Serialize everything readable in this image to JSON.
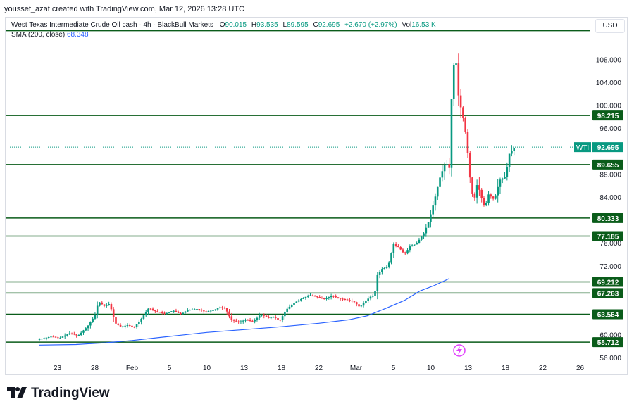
{
  "header": {
    "author": "youssef_azat created with TradingView.com, Mar 12, 2026 13:28 UTC"
  },
  "legend": {
    "title": "West Texas Intermediate Crude Oil cash · 4h · BlackBull Markets",
    "open_label": "O",
    "open": "90.015",
    "high_label": "H",
    "high": "93.535",
    "low_label": "L",
    "low": "89.595",
    "close_label": "C",
    "close": "92.695",
    "change": "+2.670 (+2.97%)",
    "vol_label": "Vol",
    "vol": "16.53 K",
    "sma_label": "SMA (200, close)",
    "sma_value": "68.348"
  },
  "currency": "USD",
  "symbol_badge": "WTI",
  "brand": "TradingView",
  "colors": {
    "up": "#089981",
    "down": "#f23645",
    "sma": "#2962ff",
    "level_line": "#0a5c1a",
    "badge": "#0a5c1a"
  },
  "icons": {
    "flash": "flash-icon",
    "logo": "tradingview-logo-icon"
  },
  "chart_data": {
    "type": "candlestick",
    "y_ticks": [
      "108.000",
      "104.000",
      "100.000",
      "96.000",
      "88.000",
      "84.000",
      "76.000",
      "72.000",
      "60.000",
      "56.000"
    ],
    "ylim": [
      55.5,
      113
    ],
    "x_ticks": [
      {
        "label": "23",
        "t": 0.5
      },
      {
        "label": "28",
        "t": 1.5
      },
      {
        "label": "Feb",
        "t": 2.5
      },
      {
        "label": "5",
        "t": 3.5
      },
      {
        "label": "10",
        "t": 4.5
      },
      {
        "label": "13",
        "t": 5.5
      },
      {
        "label": "18",
        "t": 6.5
      },
      {
        "label": "22",
        "t": 7.5
      },
      {
        "label": "Mar",
        "t": 8.5
      },
      {
        "label": "5",
        "t": 9.5
      },
      {
        "label": "10",
        "t": 10.5
      },
      {
        "label": "13",
        "t": 11.5
      },
      {
        "label": "18",
        "t": 12.5
      },
      {
        "label": "22",
        "t": 13.5
      },
      {
        "label": "26",
        "t": 14.5
      }
    ],
    "horizontal_levels": [
      69.212,
      67.263,
      63.564,
      58.712,
      77.185,
      80.333,
      89.655,
      98.215,
      113
    ],
    "level_labels": [
      "98.215",
      "89.655",
      "80.333",
      "77.185",
      "69.212",
      "67.263",
      "63.564",
      "58.712"
    ],
    "last_price": 92.695,
    "last_price_label": "92.695",
    "sma_200": [
      [
        0,
        58.2
      ],
      [
        1,
        58.3
      ],
      [
        1.8,
        58.6
      ],
      [
        2.5,
        59.0
      ],
      [
        3.5,
        59.7
      ],
      [
        4.5,
        60.4
      ],
      [
        5.5,
        60.9
      ],
      [
        6.5,
        61.4
      ],
      [
        7.5,
        62.0
      ],
      [
        8.3,
        62.6
      ],
      [
        8.8,
        63.3
      ],
      [
        9.3,
        64.6
      ],
      [
        9.8,
        66.0
      ],
      [
        10.2,
        67.6
      ],
      [
        10.6,
        68.6
      ],
      [
        11.0,
        69.8
      ]
    ],
    "close_path": [
      [
        0,
        59.2
      ],
      [
        0.35,
        59.7
      ],
      [
        0.55,
        59.4
      ],
      [
        0.85,
        60.3
      ],
      [
        1.05,
        59.8
      ],
      [
        1.3,
        61.4
      ],
      [
        1.5,
        63.3
      ],
      [
        1.6,
        65.8
      ],
      [
        1.75,
        65.0
      ],
      [
        1.9,
        65.4
      ],
      [
        2.05,
        62.0
      ],
      [
        2.2,
        61.4
      ],
      [
        2.4,
        61.7
      ],
      [
        2.55,
        61.2
      ],
      [
        2.75,
        62.8
      ],
      [
        2.95,
        64.7
      ],
      [
        3.15,
        64.0
      ],
      [
        3.4,
        63.7
      ],
      [
        3.6,
        64.2
      ],
      [
        3.8,
        63.6
      ],
      [
        4.0,
        64.3
      ],
      [
        4.25,
        64.5
      ],
      [
        4.45,
        64.0
      ],
      [
        4.7,
        64.3
      ],
      [
        4.85,
        64.8
      ],
      [
        5.0,
        64.6
      ],
      [
        5.15,
        62.6
      ],
      [
        5.35,
        62.2
      ],
      [
        5.55,
        62.6
      ],
      [
        5.75,
        62.3
      ],
      [
        5.95,
        63.6
      ],
      [
        6.15,
        62.9
      ],
      [
        6.3,
        63.1
      ],
      [
        6.45,
        62.4
      ],
      [
        6.65,
        64.5
      ],
      [
        6.85,
        65.6
      ],
      [
        7.05,
        66.3
      ],
      [
        7.25,
        66.9
      ],
      [
        7.45,
        66.6
      ],
      [
        7.65,
        66.2
      ],
      [
        7.85,
        66.8
      ],
      [
        8.05,
        66.3
      ],
      [
        8.25,
        66.1
      ],
      [
        8.45,
        65.7
      ],
      [
        8.6,
        64.8
      ],
      [
        8.75,
        65.9
      ],
      [
        8.9,
        66.7
      ],
      [
        9.0,
        66.9
      ],
      [
        9.05,
        70.2
      ],
      [
        9.2,
        71.5
      ],
      [
        9.35,
        71.8
      ],
      [
        9.5,
        75.8
      ],
      [
        9.65,
        75.2
      ],
      [
        9.8,
        74.0
      ],
      [
        9.95,
        75.5
      ],
      [
        10.1,
        75.8
      ],
      [
        10.3,
        77.5
      ],
      [
        10.45,
        79.8
      ],
      [
        10.6,
        83.5
      ],
      [
        10.75,
        87.5
      ],
      [
        10.9,
        90.1
      ],
      [
        11.0,
        89.0
      ],
      [
        11.05,
        100.5
      ],
      [
        11.15,
        110.0
      ],
      [
        11.25,
        101.0
      ],
      [
        11.35,
        98.5
      ],
      [
        11.45,
        94.5
      ],
      [
        11.55,
        87.5
      ],
      [
        11.65,
        83.0
      ],
      [
        11.75,
        86.5
      ],
      [
        11.85,
        84.0
      ],
      [
        11.95,
        82.0
      ],
      [
        12.05,
        84.5
      ],
      [
        12.2,
        83.5
      ],
      [
        12.35,
        87.0
      ],
      [
        12.5,
        87.5
      ],
      [
        12.6,
        91.5
      ],
      [
        12.75,
        92.7
      ]
    ]
  }
}
